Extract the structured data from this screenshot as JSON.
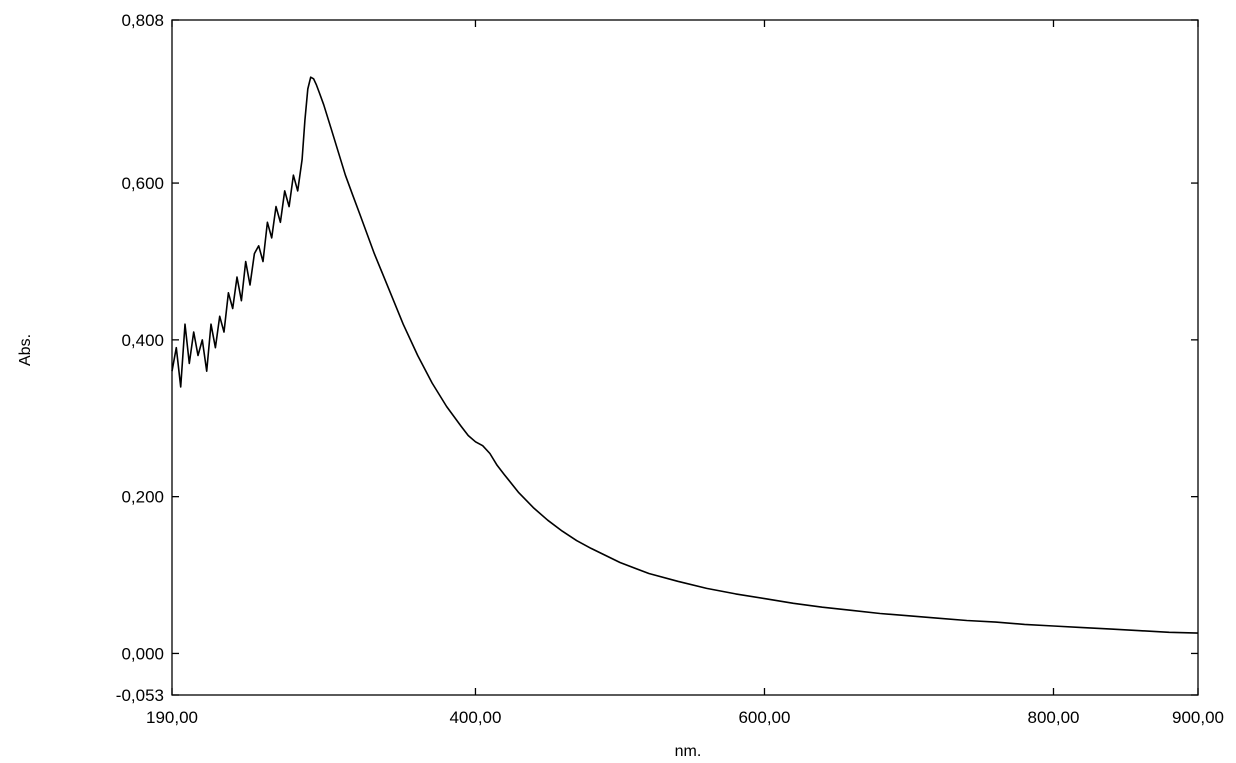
{
  "chart_data": {
    "type": "line",
    "title": "",
    "xlabel": "nm.",
    "ylabel": "Abs.",
    "xlim": [
      190,
      900
    ],
    "ylim": [
      -0.053,
      0.808
    ],
    "x_ticks": [
      190,
      400,
      600,
      800,
      900
    ],
    "x_tick_labels": [
      "190,00",
      "400,00",
      "600,00",
      "800,00",
      "900,00"
    ],
    "y_ticks": [
      -0.053,
      0.0,
      0.2,
      0.4,
      0.6,
      0.808
    ],
    "y_tick_labels": [
      "-0,053",
      "0,000",
      "0,200",
      "0,400",
      "0,600",
      "0,808"
    ],
    "grid": false,
    "line_color": "#000000",
    "series": [
      {
        "x": [
          190,
          193,
          196,
          199,
          202,
          205,
          208,
          211,
          214,
          217,
          220,
          223,
          226,
          229,
          232,
          235,
          238,
          241,
          244,
          247,
          250,
          253,
          256,
          259,
          262,
          265,
          268,
          271,
          274,
          277,
          280,
          282,
          284,
          286,
          288,
          290,
          292,
          295,
          300,
          305,
          310,
          315,
          320,
          330,
          340,
          350,
          360,
          370,
          380,
          390,
          395,
          400,
          405,
          410,
          415,
          420,
          430,
          440,
          450,
          460,
          470,
          480,
          500,
          520,
          540,
          560,
          580,
          600,
          620,
          640,
          660,
          680,
          700,
          720,
          740,
          760,
          780,
          800,
          820,
          840,
          860,
          880,
          900
        ],
        "y": [
          0.36,
          0.39,
          0.34,
          0.42,
          0.37,
          0.41,
          0.38,
          0.4,
          0.36,
          0.42,
          0.39,
          0.43,
          0.41,
          0.46,
          0.44,
          0.48,
          0.45,
          0.5,
          0.47,
          0.51,
          0.52,
          0.5,
          0.55,
          0.53,
          0.57,
          0.55,
          0.59,
          0.57,
          0.61,
          0.59,
          0.63,
          0.68,
          0.72,
          0.735,
          0.733,
          0.725,
          0.715,
          0.7,
          0.67,
          0.64,
          0.61,
          0.585,
          0.56,
          0.51,
          0.465,
          0.42,
          0.38,
          0.345,
          0.315,
          0.29,
          0.278,
          0.27,
          0.265,
          0.255,
          0.24,
          0.228,
          0.205,
          0.186,
          0.17,
          0.156,
          0.144,
          0.134,
          0.116,
          0.102,
          0.092,
          0.083,
          0.076,
          0.07,
          0.064,
          0.059,
          0.055,
          0.051,
          0.048,
          0.045,
          0.042,
          0.04,
          0.037,
          0.035,
          0.033,
          0.031,
          0.029,
          0.027,
          0.026
        ]
      }
    ]
  }
}
